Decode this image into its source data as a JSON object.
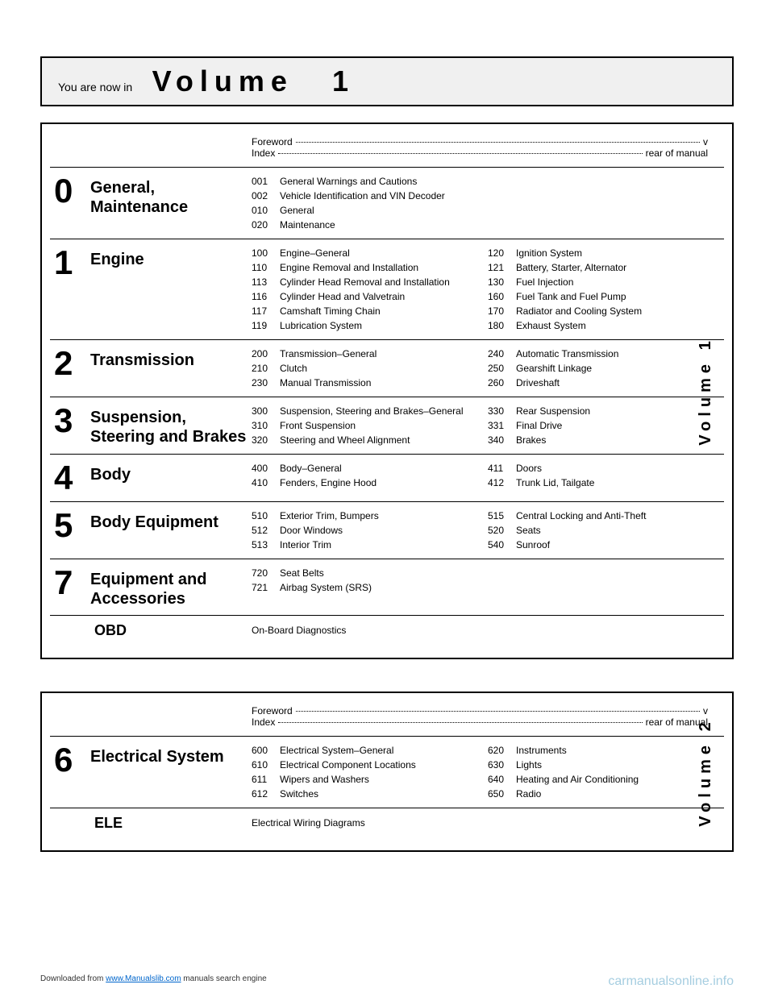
{
  "header": {
    "prefix": "You are now in",
    "volume_label": "Volume",
    "volume_number": "1"
  },
  "volume1": {
    "foreword": {
      "label": "Foreword",
      "end": "v"
    },
    "index": {
      "label": "Index",
      "end": "rear of manual"
    },
    "side_label": "Volume 1",
    "sections": [
      {
        "num": "0",
        "title": "General, Maintenance",
        "left": [
          {
            "code": "001",
            "text": "General Warnings and Cautions"
          },
          {
            "code": "002",
            "text": "Vehicle Identification and VIN Decoder"
          },
          {
            "code": "010",
            "text": "General"
          },
          {
            "code": "020",
            "text": "Maintenance"
          }
        ],
        "right": []
      },
      {
        "num": "1",
        "title": "Engine",
        "left": [
          {
            "code": "100",
            "text": "Engine–General"
          },
          {
            "code": "110",
            "text": "Engine Removal and Installation"
          },
          {
            "code": "113",
            "text": "Cylinder Head Removal and Installation"
          },
          {
            "code": "116",
            "text": "Cylinder Head and Valvetrain"
          },
          {
            "code": "117",
            "text": "Camshaft Timing Chain"
          },
          {
            "code": "119",
            "text": "Lubrication System"
          }
        ],
        "right": [
          {
            "code": "120",
            "text": "Ignition System"
          },
          {
            "code": "121",
            "text": "Battery, Starter, Alternator"
          },
          {
            "code": "130",
            "text": "Fuel Injection"
          },
          {
            "code": "160",
            "text": "Fuel Tank and Fuel Pump"
          },
          {
            "code": "170",
            "text": "Radiator and Cooling System"
          },
          {
            "code": "180",
            "text": "Exhaust System"
          }
        ]
      },
      {
        "num": "2",
        "title": "Transmission",
        "left": [
          {
            "code": "200",
            "text": "Transmission–General"
          },
          {
            "code": "210",
            "text": "Clutch"
          },
          {
            "code": "230",
            "text": "Manual Transmission"
          }
        ],
        "right": [
          {
            "code": "240",
            "text": "Automatic Transmission"
          },
          {
            "code": "250",
            "text": "Gearshift Linkage"
          },
          {
            "code": "260",
            "text": "Driveshaft"
          }
        ]
      },
      {
        "num": "3",
        "title": "Suspension, Steering and Brakes",
        "left": [
          {
            "code": "300",
            "text": "Suspension, Steering and Brakes–General"
          },
          {
            "code": "310",
            "text": "Front Suspension"
          },
          {
            "code": "320",
            "text": "Steering and Wheel Alignment"
          }
        ],
        "right": [
          {
            "code": "330",
            "text": "Rear Suspension"
          },
          {
            "code": "331",
            "text": "Final Drive"
          },
          {
            "code": "340",
            "text": "Brakes"
          }
        ]
      },
      {
        "num": "4",
        "title": "Body",
        "left": [
          {
            "code": "400",
            "text": "Body–General"
          },
          {
            "code": "410",
            "text": "Fenders, Engine Hood"
          }
        ],
        "right": [
          {
            "code": "411",
            "text": "Doors"
          },
          {
            "code": "412",
            "text": "Trunk Lid, Tailgate"
          }
        ]
      },
      {
        "num": "5",
        "title": "Body Equipment",
        "left": [
          {
            "code": "510",
            "text": "Exterior Trim, Bumpers"
          },
          {
            "code": "512",
            "text": "Door Windows"
          },
          {
            "code": "513",
            "text": "Interior Trim"
          }
        ],
        "right": [
          {
            "code": "515",
            "text": "Central Locking and Anti-Theft"
          },
          {
            "code": "520",
            "text": "Seats"
          },
          {
            "code": "540",
            "text": "Sunroof"
          }
        ]
      },
      {
        "num": "7",
        "title": "Equipment and Accessories",
        "left": [
          {
            "code": "720",
            "text": "Seat Belts"
          },
          {
            "code": "721",
            "text": "Airbag System (SRS)"
          }
        ],
        "right": []
      }
    ],
    "obd": {
      "label": "OBD",
      "text": "On-Board Diagnostics"
    }
  },
  "volume2": {
    "foreword": {
      "label": "Foreword",
      "end": "v"
    },
    "index": {
      "label": "Index",
      "end": "rear of manual"
    },
    "side_label": "Volume 2",
    "sections": [
      {
        "num": "6",
        "title": "Electrical System",
        "left": [
          {
            "code": "600",
            "text": "Electrical System–General"
          },
          {
            "code": "610",
            "text": "Electrical Component Locations"
          },
          {
            "code": "611",
            "text": "Wipers and Washers"
          },
          {
            "code": "612",
            "text": "Switches"
          }
        ],
        "right": [
          {
            "code": "620",
            "text": "Instruments"
          },
          {
            "code": "630",
            "text": "Lights"
          },
          {
            "code": "640",
            "text": "Heating and Air Conditioning"
          },
          {
            "code": "650",
            "text": "Radio"
          }
        ]
      }
    ],
    "ele": {
      "label": "ELE",
      "text": "Electrical Wiring Diagrams"
    }
  },
  "footer": {
    "left_prefix": "Downloaded from ",
    "left_link": "www.Manualslib.com",
    "left_suffix": " manuals search engine",
    "right": "carmanualsonline.info"
  }
}
